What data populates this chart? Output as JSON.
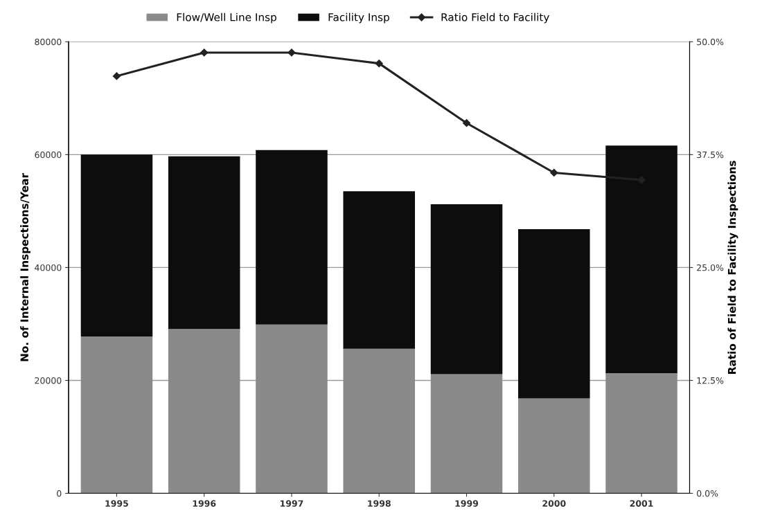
{
  "chart_data": {
    "type": "bar",
    "stacked": true,
    "categories": [
      "1995",
      "1996",
      "1997",
      "1998",
      "1999",
      "2000",
      "2001"
    ],
    "series": [
      {
        "name": "Flow/Well Line Insp",
        "color": "#8a8a8a",
        "values": [
          27800,
          29100,
          29900,
          25600,
          21100,
          16800,
          21300
        ]
      },
      {
        "name": "Facility Insp",
        "color": "#0d0d0d",
        "values": [
          32200,
          30600,
          30900,
          27900,
          30100,
          30000,
          40300
        ]
      },
      {
        "name": "Ratio Field to Facility",
        "type": "line",
        "axis": "y2",
        "color": "#222222",
        "marker": "diamond",
        "values": [
          46.2,
          48.8,
          48.8,
          47.6,
          41.0,
          35.5,
          34.7
        ]
      }
    ],
    "ylabel": "No. of Internal Inspections/Year",
    "y2label": "Ratio of Field to Facility Inspections",
    "ylim": [
      0,
      80000
    ],
    "yticks": [
      0,
      20000,
      40000,
      60000,
      80000
    ],
    "y2lim": [
      0,
      50
    ],
    "y2ticks": [
      {
        "value": 0,
        "label": "0.0%"
      },
      {
        "value": 12.5,
        "label": "12.5%"
      },
      {
        "value": 25,
        "label": "25.0%"
      },
      {
        "value": 37.5,
        "label": "37.5%"
      },
      {
        "value": 50,
        "label": "50.0%"
      }
    ],
    "grid": "y",
    "legend": "top"
  }
}
